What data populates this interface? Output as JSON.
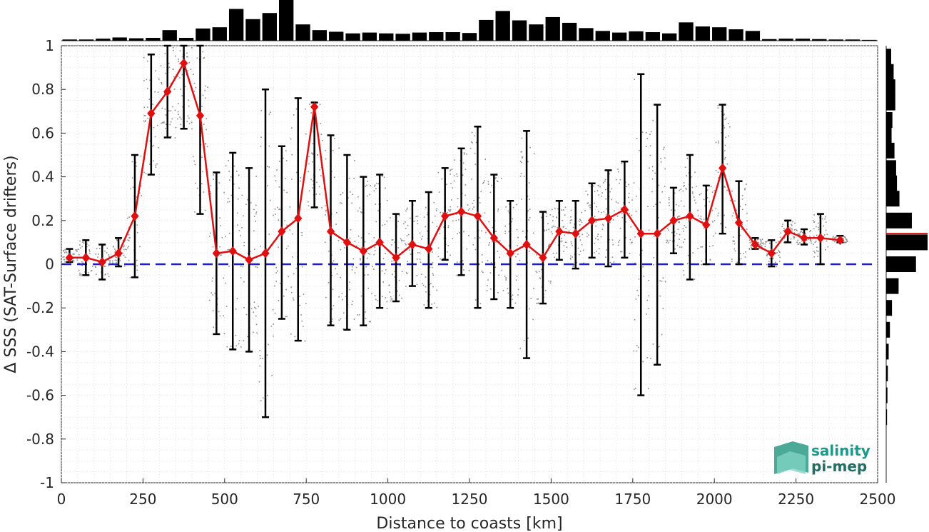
{
  "chart_data": {
    "type": "line",
    "xlabel": "Distance to coasts [km]",
    "ylabel": "Δ SSS (SAT-Surface drifters)",
    "xlim": [
      0,
      2500
    ],
    "ylim": [
      -1,
      1
    ],
    "x_ticks": [
      "0",
      "250",
      "500",
      "750",
      "1000",
      "1250",
      "1500",
      "1750",
      "2000",
      "2250",
      "2500"
    ],
    "y_ticks": [
      "-1",
      "-0.8",
      "-0.6",
      "-0.4",
      "-0.2",
      "0",
      "0.2",
      "0.4",
      "0.6",
      "0.8",
      "1"
    ],
    "grid": true,
    "zero_line": {
      "y": 0,
      "color": "#1f1fd6",
      "style": "dashed"
    },
    "series": [
      {
        "color": "#e01010",
        "marker": "diamond",
        "x": [
          25,
          75,
          125,
          175,
          225,
          275,
          325,
          375,
          425,
          475,
          525,
          575,
          625,
          675,
          725,
          775,
          825,
          875,
          925,
          975,
          1025,
          1075,
          1125,
          1175,
          1225,
          1275,
          1325,
          1375,
          1425,
          1475,
          1525,
          1575,
          1625,
          1675,
          1725,
          1775,
          1825,
          1875,
          1925,
          1975,
          2025,
          2075,
          2125,
          2175,
          2225,
          2275,
          2325,
          2385
        ],
        "values": [
          0.03,
          0.03,
          0.01,
          0.05,
          0.22,
          0.69,
          0.79,
          0.92,
          0.68,
          0.05,
          0.06,
          0.02,
          0.05,
          0.15,
          0.21,
          0.72,
          0.15,
          0.1,
          0.06,
          0.1,
          0.03,
          0.09,
          0.07,
          0.22,
          0.24,
          0.22,
          0.12,
          0.05,
          0.09,
          0.03,
          0.15,
          0.14,
          0.2,
          0.21,
          0.25,
          0.14,
          0.14,
          0.2,
          0.22,
          0.18,
          0.44,
          0.19,
          0.09,
          0.05,
          0.15,
          0.12,
          0.12,
          0.11
        ],
        "err_low": [
          0.01,
          -0.05,
          -0.07,
          -0.01,
          -0.06,
          0.41,
          0.58,
          0.62,
          0.23,
          -0.32,
          -0.39,
          -0.4,
          -0.7,
          -0.25,
          -0.35,
          0.26,
          -0.28,
          -0.3,
          -0.28,
          -0.2,
          -0.17,
          -0.1,
          -0.2,
          0.02,
          -0.05,
          -0.2,
          -0.16,
          -0.2,
          -0.43,
          -0.18,
          0.02,
          -0.02,
          0.03,
          -0.01,
          0.03,
          -0.6,
          -0.46,
          0.05,
          -0.07,
          0.0,
          0.14,
          0.0,
          0.07,
          -0.01,
          0.1,
          0.09,
          0.0,
          0.1
        ],
        "err_high": [
          0.07,
          0.11,
          0.09,
          0.12,
          0.5,
          0.96,
          1.0,
          1.0,
          1.0,
          0.42,
          0.51,
          0.44,
          0.8,
          0.54,
          0.76,
          0.74,
          0.59,
          0.5,
          0.4,
          0.41,
          0.23,
          0.29,
          0.33,
          0.44,
          0.53,
          0.63,
          0.41,
          0.29,
          0.61,
          0.24,
          0.29,
          0.29,
          0.37,
          0.43,
          0.47,
          0.87,
          0.73,
          0.35,
          0.5,
          0.36,
          0.73,
          0.38,
          0.12,
          0.11,
          0.2,
          0.16,
          0.23,
          0.13
        ]
      }
    ],
    "top_histogram": [
      0.03,
      0.03,
      0.05,
      0.08,
      0.06,
      0.07,
      0.26,
      0.07,
      0.3,
      0.33,
      0.78,
      0.53,
      0.68,
      1.0,
      0.4,
      0.26,
      0.22,
      0.18,
      0.2,
      0.18,
      0.17,
      0.2,
      0.21,
      0.21,
      0.19,
      0.51,
      0.73,
      0.5,
      0.4,
      0.58,
      0.44,
      0.31,
      0.24,
      0.2,
      0.23,
      0.21,
      0.18,
      0.45,
      0.35,
      0.33,
      0.28,
      0.24,
      0.04,
      0.05,
      0.05,
      0.04,
      0.03,
      0.03,
      0.02
    ],
    "side_histogram": {
      "bin_centers": [
        0.95,
        0.88,
        0.81,
        0.74,
        0.66,
        0.59,
        0.52,
        0.44,
        0.37,
        0.3,
        0.2,
        0.1,
        0.0,
        -0.1,
        -0.2,
        -0.3,
        -0.4,
        -0.5,
        -0.6,
        -0.7
      ],
      "widths": [
        0.12,
        0.18,
        0.22,
        0.22,
        0.15,
        0.13,
        0.2,
        0.24,
        0.26,
        0.32,
        0.62,
        1.0,
        0.72,
        0.3,
        0.14,
        0.09,
        0.06,
        0.04,
        0.03,
        0.02
      ],
      "mean_line": {
        "y": 0.14,
        "color": "#e01010"
      }
    },
    "logo": {
      "line1": "salinity",
      "line2": "pi-mep"
    }
  }
}
